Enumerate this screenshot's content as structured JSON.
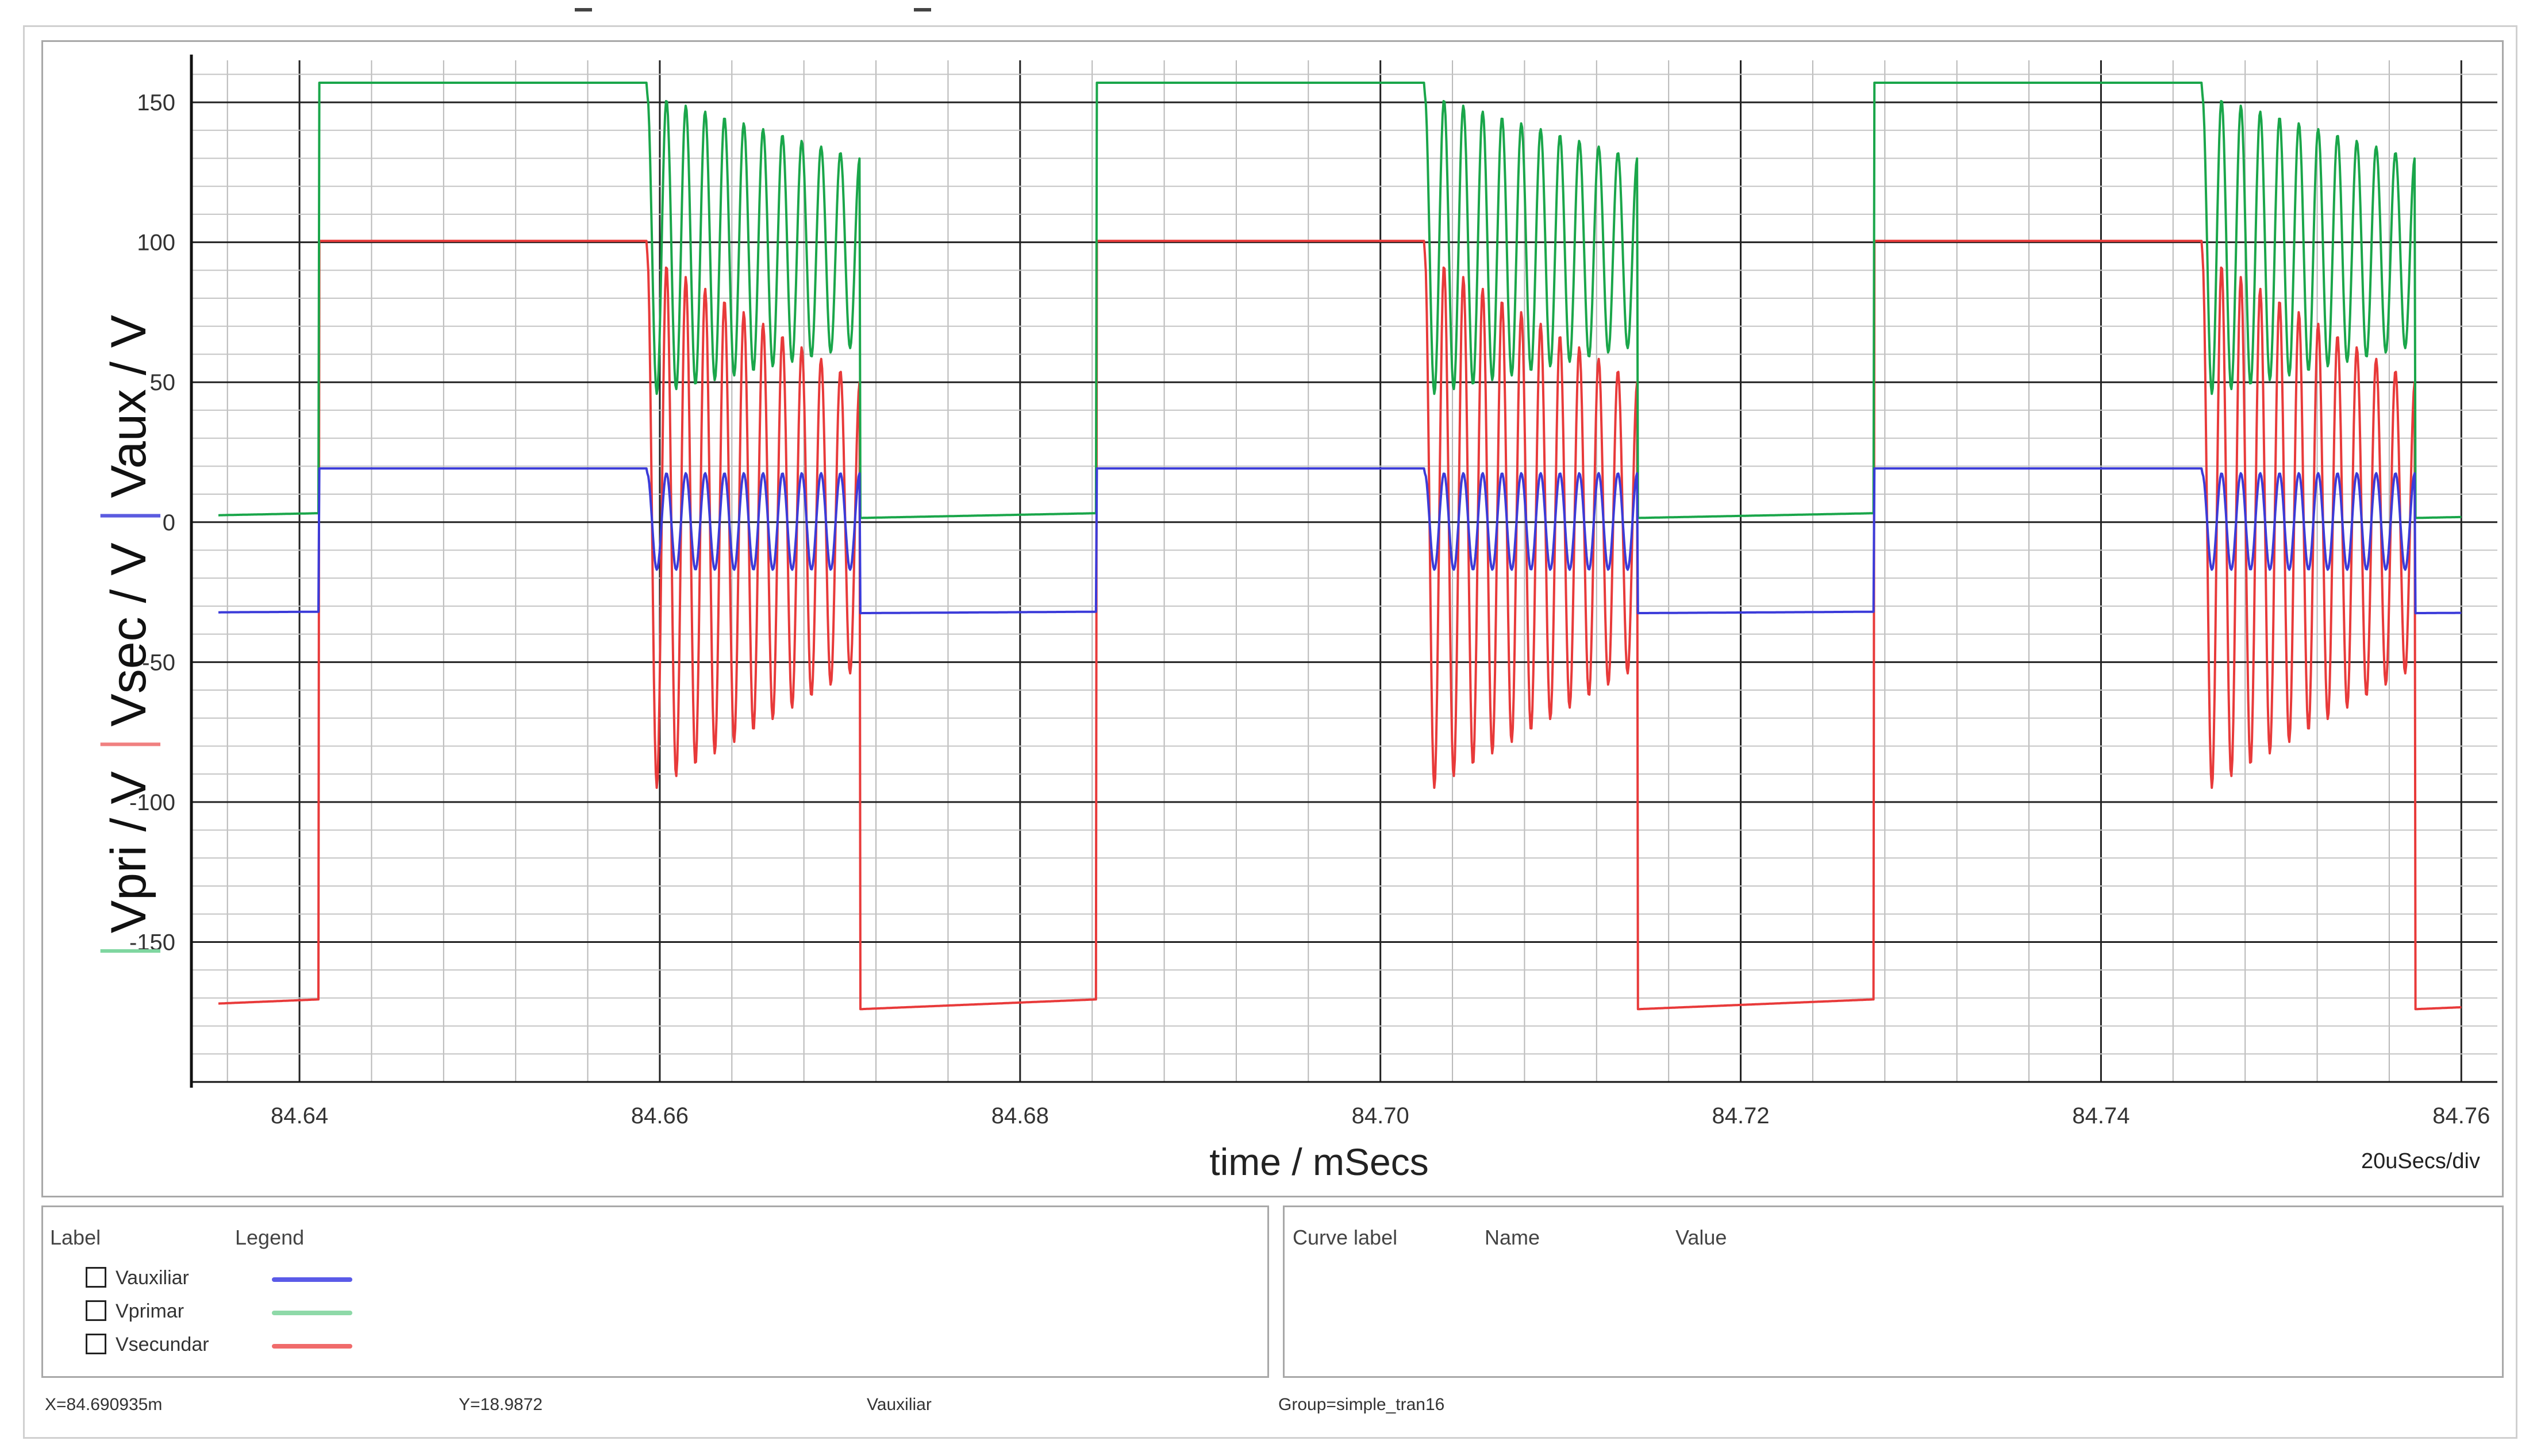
{
  "chart_data": {
    "type": "line",
    "xlabel": "time / mSecs",
    "x_scale_note": "20uSecs/div",
    "xlim": [
      84.634,
      84.762
    ],
    "ylim": [
      -200,
      165
    ],
    "xticks": [
      "84.64",
      "84.66",
      "84.68",
      "84.70",
      "84.72",
      "84.74",
      "84.76"
    ],
    "yticks": [
      "150",
      "100",
      "50",
      "0",
      "-50",
      "-100",
      "-150"
    ],
    "ylabel_parts": [
      {
        "text": "Vpri / V",
        "color": "#7fd6a0"
      },
      {
        "text": "Vsec / V",
        "color": "#f08080"
      },
      {
        "text": "Vaux / V",
        "color": "#5b5be0"
      }
    ],
    "grid": true,
    "period_ms": 0.04316,
    "switching_cycles_start_ms": [
      84.6411,
      84.68426,
      84.72742
    ],
    "series": [
      {
        "name": "Vauxiliar",
        "color": "#3b3bd9",
        "on_level": 19.2,
        "off_level_start": -32.5,
        "off_level_end": -32.0,
        "ring_high": 17.5,
        "ring_low": -17,
        "ring_count": 11
      },
      {
        "name": "Vprimar",
        "color": "#1aa64a",
        "on_level": 157,
        "off_level_start": 1.5,
        "off_level_end": 3.2,
        "ring_high_start": 153,
        "ring_high_end": 130,
        "ring_low_start": 45,
        "ring_low_end": 63,
        "ring_count": 11
      },
      {
        "name": "Vsecundar",
        "color": "#e83a3a",
        "on_level": 100.5,
        "off_level_start": -174,
        "off_level_end": -170.5,
        "ring_high_start": 96,
        "ring_high_end": 50,
        "ring_low_start": -97,
        "ring_low_end": -52,
        "ring_count": 11
      }
    ]
  },
  "legend_panel": {
    "label_header": "Label",
    "legend_header": "Legend",
    "items": [
      {
        "name": "Vauxiliar",
        "color": "#5a5ae8"
      },
      {
        "name": "Vprimar",
        "color": "#8ed9a8"
      },
      {
        "name": "Vsecundar",
        "color": "#f06b6b"
      }
    ]
  },
  "values_panel": {
    "curve_label_header": "Curve label",
    "name_header": "Name",
    "value_header": "Value"
  },
  "status_bar": {
    "x_readout": "X=84.690935m",
    "y_readout": "Y=18.9872",
    "curve": "Vauxiliar",
    "group": "Group=simple_tran16"
  }
}
